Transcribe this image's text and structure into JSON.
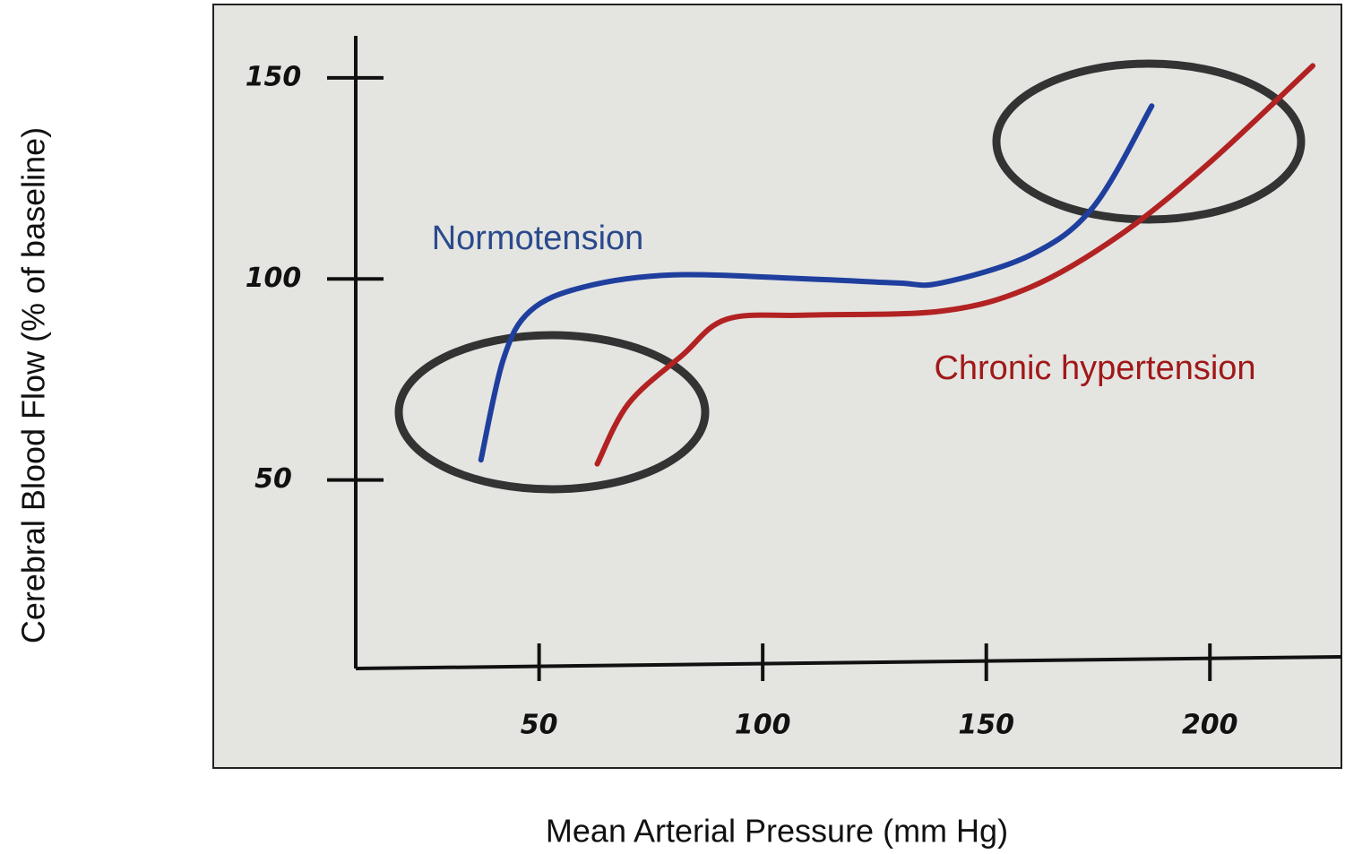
{
  "chart_data": {
    "type": "line",
    "x_label": "Mean Arterial Pressure (mm Hg)",
    "y_label": "Cerebral Blood Flow (% of baseline)",
    "xlim": [
      10,
      225
    ],
    "ylim": [
      0,
      160
    ],
    "xticks": [
      50,
      100,
      150,
      200
    ],
    "yticks": [
      50,
      100,
      150
    ],
    "series": [
      {
        "name": "Normotension",
        "color": "#1f3f9e",
        "label_color": "#2a4a8c",
        "x": [
          37,
          42,
          48,
          60,
          80,
          110,
          130,
          140,
          160,
          174,
          187
        ],
        "values": [
          55,
          80,
          92,
          98,
          101,
          100,
          99,
          99,
          106,
          118,
          143
        ]
      },
      {
        "name": "Chronic hypertension",
        "color": "#b22222",
        "label_color": "#a01818",
        "x": [
          63,
          70,
          82,
          92,
          110,
          140,
          160,
          180,
          200,
          223
        ],
        "values": [
          54,
          69,
          81,
          90,
          91,
          92,
          98,
          111,
          129,
          153
        ]
      }
    ]
  }
}
